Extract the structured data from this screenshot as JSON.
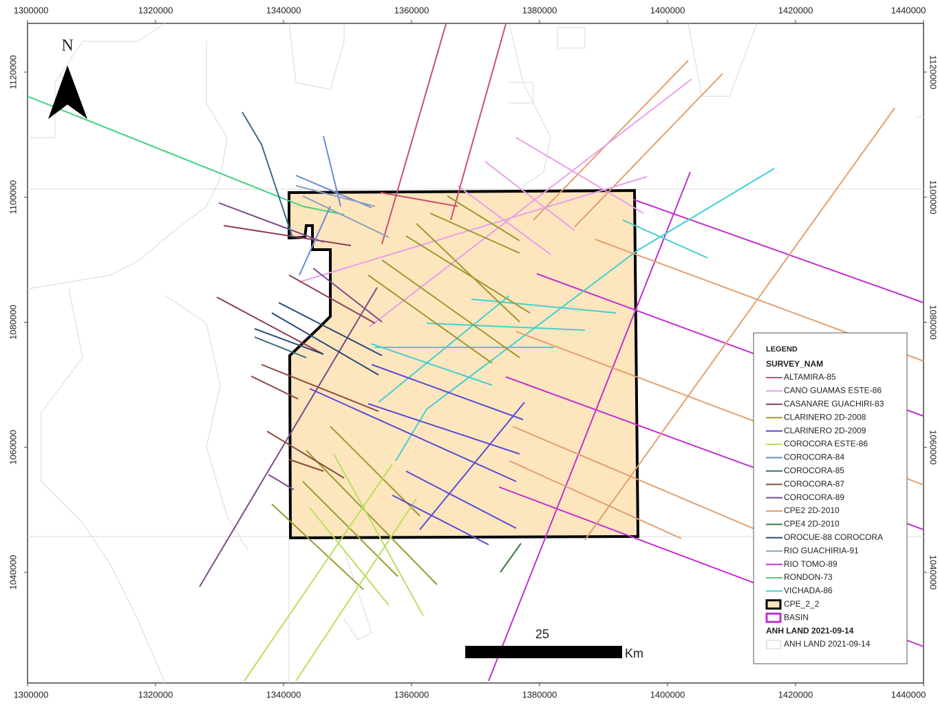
{
  "map": {
    "xlim": [
      1300000,
      1440000
    ],
    "ylim": [
      1022300,
      1127800
    ],
    "xticks": [
      1300000,
      1320000,
      1340000,
      1360000,
      1380000,
      1400000,
      1420000,
      1440000
    ],
    "yticks": [
      1040000,
      1060000,
      1080000,
      1100000,
      1120000
    ],
    "north": "N",
    "scale": {
      "value": "25",
      "unit": "Km"
    },
    "legend": {
      "title": "LEGEND",
      "group": "SURVEY_NAM",
      "items": [
        {
          "name": "ALTAMIRA-85",
          "color": "#c8506e"
        },
        {
          "name": "CANO GUAMAS ESTE-86",
          "color": "#e8a0e8"
        },
        {
          "name": "CASANARE GUACHIRI-83",
          "color": "#8b3a5a"
        },
        {
          "name": "CLARINERO 2D-2008",
          "color": "#9a9a30"
        },
        {
          "name": "CLARINERO 2D-2009",
          "color": "#5a4ad8"
        },
        {
          "name": "COROCORA ESTE-86",
          "color": "#b8e060"
        },
        {
          "name": "COROCORA-84",
          "color": "#6a8ad0"
        },
        {
          "name": "COROCORA-85",
          "color": "#3a6a80"
        },
        {
          "name": "COROCORA-87",
          "color": "#8a4a40"
        },
        {
          "name": "COROCORA-89",
          "color": "#7a4a8a"
        },
        {
          "name": "CPE2 2D-2010",
          "color": "#e0a070"
        },
        {
          "name": "CPE4 2D-2010",
          "color": "#3a7a3a"
        },
        {
          "name": "OROCUE-88 COROCORA",
          "color": "#2a4a70"
        },
        {
          "name": "RIO GUACHIRIA-91",
          "color": "#8aa0c0"
        },
        {
          "name": "RIO TOMO-89",
          "color": "#c030d0"
        },
        {
          "name": "RONDON-73",
          "color": "#40d080"
        },
        {
          "name": "VICHADA-86",
          "color": "#40d0d0"
        }
      ],
      "block": {
        "name": "CPE_2_2",
        "fill": "#fde5bd",
        "stroke": "#000000"
      },
      "basin": {
        "name": "BASIN",
        "stroke": "#c030d0"
      },
      "land_group": "ANH LAND 2021-09-14",
      "land_item": {
        "name": "ANH LAND 2021-09-14",
        "stroke": "#cccccc"
      }
    }
  }
}
